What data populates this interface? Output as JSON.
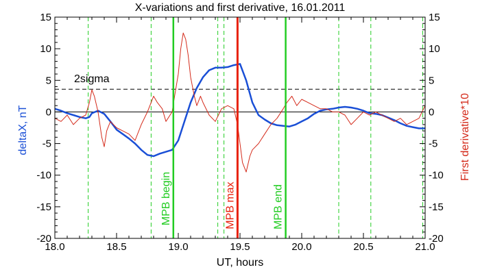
{
  "chart_data": {
    "type": "line",
    "title": "X-variations and first derivative, 16.01.2011",
    "xlabel": "UT, hours",
    "ylabel_left": "deltaX, nT",
    "ylabel_right": "First derivative*10",
    "xlim": [
      18.0,
      21.0
    ],
    "ylim": [
      -20,
      15
    ],
    "x_ticks": [
      "18.0",
      "18.5",
      "19.0",
      "19.5",
      "20.0",
      "20.5",
      "21.0"
    ],
    "y_ticks": [
      "-20",
      "-15",
      "-10",
      "-5",
      "0",
      "5",
      "10",
      "15"
    ],
    "colors": {
      "deltaX": "#1a4fd6",
      "derivative": "#d42a1a",
      "event_lines": "#22cc22",
      "mpb_max": "#e8200a",
      "axes": "#000000"
    },
    "series": [
      {
        "key": "deltaX",
        "axis": "left",
        "x": [
          18.0,
          18.05,
          18.1,
          18.15,
          18.2,
          18.25,
          18.28,
          18.3,
          18.35,
          18.4,
          18.45,
          18.5,
          18.55,
          18.6,
          18.65,
          18.7,
          18.75,
          18.8,
          18.85,
          18.9,
          18.95,
          19.0,
          19.05,
          19.1,
          19.15,
          19.2,
          19.25,
          19.3,
          19.35,
          19.4,
          19.45,
          19.5,
          19.55,
          19.6,
          19.65,
          19.7,
          19.75,
          19.8,
          19.85,
          19.9,
          19.95,
          20.0,
          20.05,
          20.1,
          20.15,
          20.2,
          20.25,
          20.3,
          20.35,
          20.4,
          20.45,
          20.5,
          20.55,
          20.6,
          20.65,
          20.7,
          20.75,
          20.8,
          20.85,
          20.9,
          20.95,
          21.0
        ],
        "y": [
          0.5,
          0.2,
          -0.2,
          -0.5,
          -0.8,
          -1.0,
          -0.8,
          -0.2,
          0.2,
          -0.3,
          -1.5,
          -2.8,
          -3.5,
          -4.2,
          -5.0,
          -6.0,
          -6.8,
          -7.0,
          -6.6,
          -6.3,
          -6.0,
          -4.5,
          -1.5,
          1.5,
          3.8,
          5.5,
          6.6,
          7.0,
          7.0,
          7.1,
          7.4,
          7.6,
          5.0,
          1.5,
          -0.5,
          -1.2,
          -1.8,
          -2.1,
          -2.2,
          -2.3,
          -2.0,
          -1.5,
          -1.0,
          -0.3,
          0.2,
          0.4,
          0.5,
          0.7,
          0.8,
          0.7,
          0.5,
          0.2,
          -0.2,
          -0.3,
          -0.5,
          -0.9,
          -1.3,
          -1.8,
          -2.2,
          -2.4,
          -2.6,
          -2.6
        ]
      },
      {
        "key": "derivative",
        "axis": "right",
        "x": [
          18.0,
          18.05,
          18.1,
          18.15,
          18.2,
          18.25,
          18.28,
          18.3,
          18.32,
          18.35,
          18.38,
          18.4,
          18.42,
          18.45,
          18.5,
          18.55,
          18.6,
          18.65,
          18.7,
          18.75,
          18.8,
          18.83,
          18.87,
          18.9,
          18.95,
          18.97,
          19.0,
          19.02,
          19.04,
          19.06,
          19.08,
          19.1,
          19.13,
          19.15,
          19.18,
          19.2,
          19.25,
          19.3,
          19.35,
          19.4,
          19.45,
          19.48,
          19.5,
          19.52,
          19.55,
          19.58,
          19.6,
          19.65,
          19.7,
          19.75,
          19.8,
          19.85,
          19.88,
          19.92,
          19.96,
          20.0,
          20.05,
          20.1,
          20.15,
          20.2,
          20.25,
          20.3,
          20.35,
          20.4,
          20.45,
          20.5,
          20.55,
          20.6,
          20.65,
          20.7,
          20.75,
          20.8,
          20.85,
          20.9,
          20.95,
          21.0
        ],
        "y": [
          -1.0,
          -1.5,
          -0.5,
          -2.0,
          -1.0,
          -0.5,
          1.5,
          3.5,
          2.5,
          0.0,
          -4.0,
          -5.5,
          -3.0,
          -1.5,
          -2.5,
          -3.0,
          -3.5,
          -4.5,
          -2.0,
          0.0,
          2.5,
          1.5,
          0.5,
          -1.5,
          0.0,
          2.5,
          6.0,
          10.0,
          12.5,
          11.5,
          9.0,
          5.5,
          2.5,
          1.0,
          2.5,
          1.5,
          -0.5,
          -1.5,
          0.5,
          1.0,
          0.5,
          -2.0,
          -5.0,
          -8.0,
          -9.5,
          -7.0,
          -6.0,
          -5.0,
          -3.5,
          -2.0,
          -1.0,
          0.5,
          1.5,
          2.5,
          1.0,
          2.0,
          1.5,
          1.0,
          0.5,
          0.5,
          0.0,
          0.0,
          -0.5,
          -2.0,
          -1.0,
          0.0,
          -0.5,
          0.0,
          -0.5,
          -1.0,
          -1.5,
          -1.0,
          -2.0,
          -1.5,
          -1.0,
          1.0
        ]
      }
    ],
    "reference_lines": {
      "zero_line_y": 0,
      "sigma_line_y": 3.6,
      "sigma_label": "2sigma",
      "dashed_event_x": [
        18.27,
        18.78,
        19.32,
        19.37,
        20.3,
        20.56,
        20.98
      ],
      "mpb_begin_x": 18.96,
      "mpb_max_x": 19.48,
      "mpb_end_x": 19.87
    },
    "annotations": {
      "mpb_begin": "MPB begin",
      "mpb_max": "MPB max",
      "mpb_end": "MPB end"
    }
  }
}
